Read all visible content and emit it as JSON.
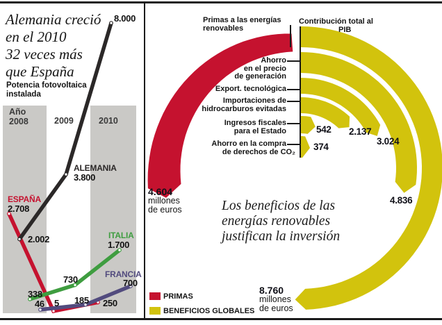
{
  "left_panel": {
    "title_lines": [
      "Alemania creció",
      "en el 2010",
      "32 veces más",
      "que España"
    ],
    "subtitle_lines": [
      "Potencia fotovoltaica",
      "instalada"
    ],
    "year_prefix": "Año",
    "years": [
      "2008",
      "2009",
      "2010"
    ]
  },
  "right_panel": {
    "quote_lines": [
      "Los beneficios de las",
      "energías renovables",
      "justifican la inversión"
    ],
    "unit_lines": [
      "millones",
      "de euros"
    ],
    "legend": [
      {
        "label": "PRIMAS",
        "color": "#c5122f"
      },
      {
        "label": "BENEFICIOS GLOBALES",
        "color": "#d2c30d"
      }
    ]
  },
  "chart_data": [
    {
      "type": "line",
      "title": "Potencia fotovoltaica instalada",
      "categories": [
        "2008",
        "2009",
        "2010"
      ],
      "series": [
        {
          "name": "ESPAÑA",
          "color": "#c5122f",
          "values": [
            2708,
            5,
            250
          ],
          "point_labels": [
            "2.708",
            "5",
            "250"
          ]
        },
        {
          "name": "ALEMANIA",
          "color": "#2b2828",
          "values": [
            2002,
            3800,
            8000
          ],
          "point_labels": [
            "2.002",
            "3.800",
            "8.000"
          ]
        },
        {
          "name": "ITALIA",
          "color": "#3f9d40",
          "values": [
            338,
            730,
            1700
          ],
          "point_labels": [
            "338",
            "730",
            "1.700"
          ]
        },
        {
          "name": "FRANCIA",
          "color": "#524b7e",
          "values": [
            46,
            185,
            700
          ],
          "point_labels": [
            "46",
            "185",
            "700"
          ]
        }
      ],
      "ylim": [
        0,
        8000
      ],
      "grid": false,
      "legend_position": "inline-labels"
    },
    {
      "type": "radial-arc",
      "unit": "millones de euros",
      "color_primas": "#c5122f",
      "color_benefits": "#d2c30d",
      "primas": {
        "label_lines": [
          "Primas a las energías",
          "renovables"
        ],
        "value": 4604,
        "display": "4.604"
      },
      "arcs": [
        {
          "label_lines": [
            "Contribución total al",
            "PIB"
          ],
          "value": 8760,
          "display": "8.760"
        },
        {
          "label_lines": [
            "Ahorro",
            "en el precio",
            "de generación"
          ],
          "value": 4836,
          "display": "4.836"
        },
        {
          "label_lines": [
            "Export. tecnológica"
          ],
          "value": 3024,
          "display": "3.024"
        },
        {
          "label_lines": [
            "Importaciones de",
            "hidrocarburos evitadas"
          ],
          "value": 2137,
          "display": "2.137"
        },
        {
          "label_lines": [
            "Ingresos fiscales",
            "para el Estado"
          ],
          "value": 542,
          "display": "542"
        },
        {
          "label_lines": [
            "Ahorro en la compra",
            "de derechos de CO₂"
          ],
          "value": 374,
          "display": "374"
        }
      ]
    }
  ]
}
